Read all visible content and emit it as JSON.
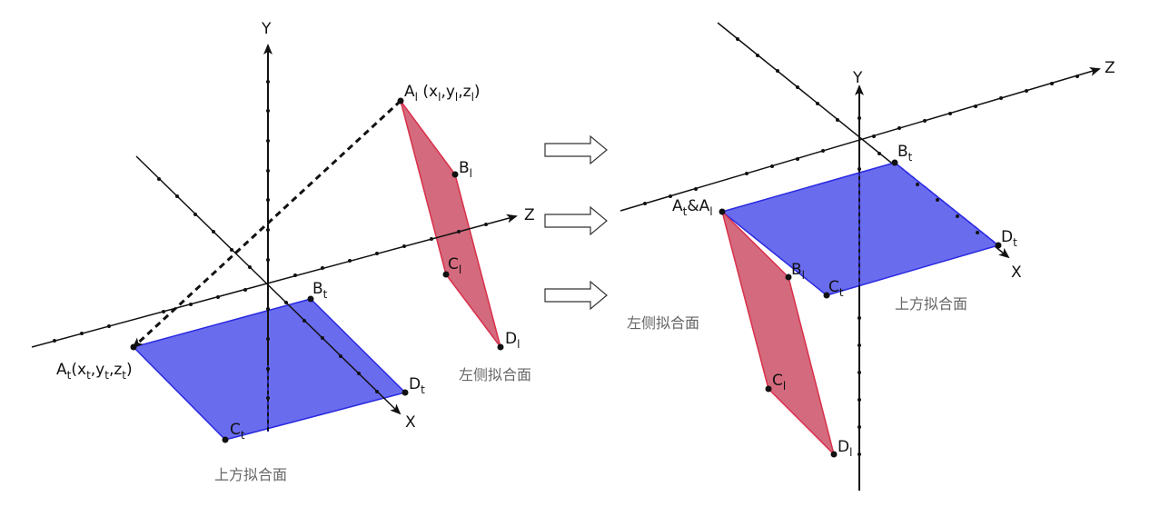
{
  "colors": {
    "top_plane_fill": "#6a6cee",
    "top_plane_stroke": "#2a2ae0",
    "left_plane_fill": "#d46a7e",
    "left_plane_stroke": "#d8304a",
    "axis": "#111111",
    "caption": "#666666"
  },
  "left_scene": {
    "axis_y": "Y",
    "axis_z": "Z",
    "axis_x": "X",
    "point_Al": {
      "base": "A",
      "sub": "l",
      "coords_open": " (x",
      "c1": "l",
      "sep1": ",y",
      "c2": "l",
      "sep2": ",z",
      "c3": "l",
      "close": ")"
    },
    "point_At": {
      "base": "A",
      "sub": "t",
      "coords_open": "(x",
      "c1": "t",
      "sep1": ",y",
      "c2": "t",
      "sep2": ",z",
      "c3": "t",
      "close": ")"
    },
    "point_Bl": {
      "base": "B",
      "sub": "l"
    },
    "point_Cl": {
      "base": "C",
      "sub": "l"
    },
    "point_Dl": {
      "base": "D",
      "sub": "l"
    },
    "point_Bt": {
      "base": "B",
      "sub": "t"
    },
    "point_Ct": {
      "base": "C",
      "sub": "t"
    },
    "point_Dt": {
      "base": "D",
      "sub": "t"
    },
    "caption_left_plane": "左侧拟合面",
    "caption_top_plane": "上方拟合面"
  },
  "right_scene": {
    "axis_y": "Y",
    "axis_z": "Z",
    "axis_x": "X",
    "point_AtAl": {
      "base1": "A",
      "sub1": "t",
      "amp": "&A",
      "sub2": "l"
    },
    "point_Bt": {
      "base": "B",
      "sub": "t"
    },
    "point_Dt": {
      "base": "D",
      "sub": "t"
    },
    "point_Ct": {
      "base": "C",
      "sub": "t"
    },
    "point_Bl": {
      "base": "B",
      "sub": "l"
    },
    "point_Cl": {
      "base": "C",
      "sub": "l"
    },
    "point_Dl": {
      "base": "D",
      "sub": "l"
    },
    "caption_left_plane": "左侧拟合面",
    "caption_top_plane": "上方拟合面"
  }
}
